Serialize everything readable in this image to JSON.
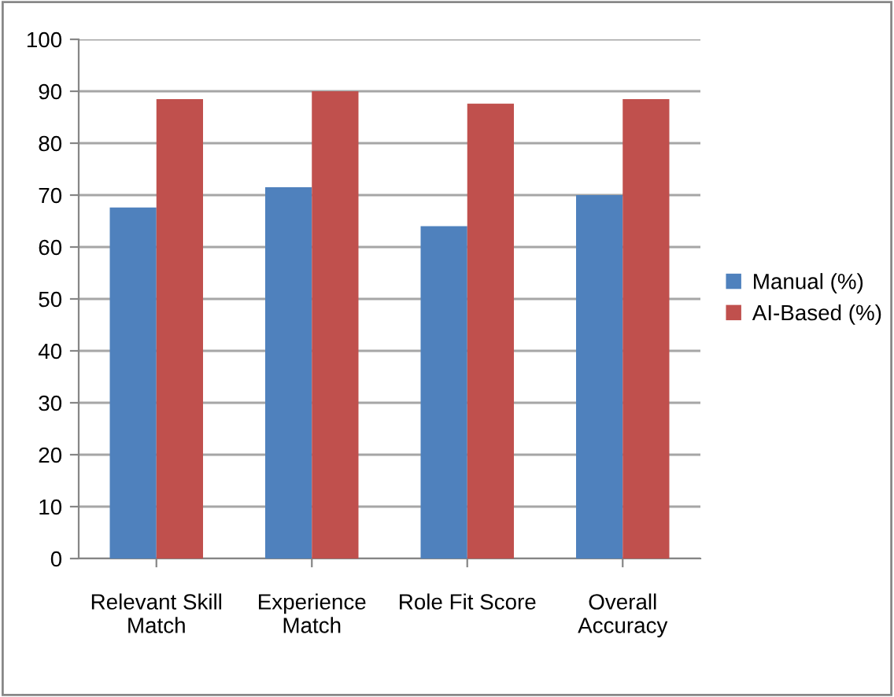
{
  "chart_data": {
    "type": "bar",
    "categories": [
      "Relevant Skill\nMatch",
      "Experience\nMatch",
      "Role Fit Score",
      "Overall\nAccuracy"
    ],
    "series": [
      {
        "name": "Manual (%)",
        "color": "#4f81bd",
        "values": [
          67.6,
          71.5,
          64,
          70
        ]
      },
      {
        "name": "AI-Based (%)",
        "color": "#c0504d",
        "values": [
          88.5,
          90,
          87.6,
          88.5
        ]
      }
    ],
    "ylim": [
      0,
      100
    ],
    "yticks": [
      0,
      10,
      20,
      30,
      40,
      50,
      60,
      70,
      80,
      90,
      100
    ],
    "grid": "y",
    "legend": "right"
  }
}
